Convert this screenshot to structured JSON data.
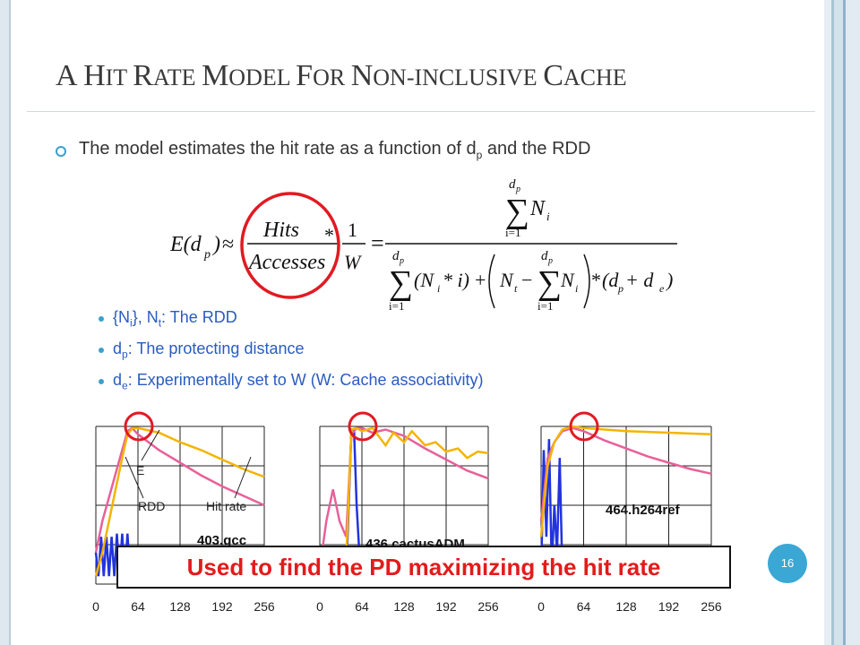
{
  "slide": {
    "title_parts": [
      {
        "t": "A",
        "big": true
      },
      {
        "t": " ",
        "big": false
      },
      {
        "t": "H",
        "big": true
      },
      {
        "t": "IT",
        "big": false
      },
      {
        "t": " ",
        "big": false
      },
      {
        "t": "R",
        "big": true
      },
      {
        "t": "ATE",
        "big": false
      },
      {
        "t": " ",
        "big": false
      },
      {
        "t": "M",
        "big": true
      },
      {
        "t": "ODEL",
        "big": false
      },
      {
        "t": " ",
        "big": false
      },
      {
        "t": "F",
        "big": true
      },
      {
        "t": "OR",
        "big": false
      },
      {
        "t": " ",
        "big": false
      },
      {
        "t": "N",
        "big": true
      },
      {
        "t": "ON-INCLUSIVE",
        "big": false
      },
      {
        "t": " ",
        "big": false
      },
      {
        "t": "C",
        "big": true
      },
      {
        "t": "ACHE",
        "big": false
      }
    ],
    "main_bullet": {
      "before": "The model estimates the hit rate as a function of d",
      "sub": "p",
      "after": " and the RDD"
    },
    "sub_bullets": [
      {
        "a": "{N",
        "s1": "i",
        "b": "}, N",
        "s2": "t",
        "c": ": The RDD"
      },
      {
        "a": "d",
        "s1": "p",
        "b": ": The protecting distance",
        "s2": "",
        "c": ""
      },
      {
        "a": "d",
        "s1": "e",
        "b": ": Experimentally set to W (W: Cache associativity)",
        "s2": "",
        "c": ""
      }
    ],
    "formula": {
      "lhs": "E(d",
      "lhs_sub": "p",
      "lhs_close": ")",
      "approx": "≈",
      "hits": "Hits",
      "accesses": "Accesses",
      "times": "*",
      "one": "1",
      "W": "W",
      "equals": "=",
      "dp": "d",
      "p": "p",
      "i_eq_1": "i=1",
      "Ni": "N",
      "i": "i",
      "Ni_times_i": "(N",
      "times_i": " * i)",
      "plus": "+",
      "Nt": "N",
      "t": "t",
      "minus": "−",
      "dp_plus_de": "(d",
      "e": "e",
      "plus_sign": " + d",
      "close": ")"
    },
    "callout": "Used to find the PD maximizing the hit rate",
    "page_number": "16",
    "colors": {
      "title": "#3a3a3a",
      "subtext": "#2a5bc0",
      "accent": "#3ba7d4",
      "callout_text": "#e31b1b",
      "circle": "#e11a22",
      "rdd": "#2233dd",
      "hitrate": "#e8609a",
      "estimate": "#f4b400"
    }
  },
  "chart_data": [
    {
      "type": "line",
      "label": "403.gcc",
      "xticks": [
        "0",
        "64",
        "128",
        "192",
        "256"
      ],
      "xlim": [
        0,
        256
      ],
      "ylim": [
        0,
        1
      ],
      "annotations": [
        "E",
        "RDD",
        "Hit rate"
      ],
      "series": [
        {
          "name": "RDD",
          "color": "#2233dd",
          "points": [
            [
              0,
              0.2
            ],
            [
              4,
              0.05
            ],
            [
              8,
              0.3
            ],
            [
              12,
              0.05
            ],
            [
              16,
              0.3
            ],
            [
              20,
              0.05
            ],
            [
              24,
              0.3
            ],
            [
              28,
              0.05
            ],
            [
              32,
              0.32
            ],
            [
              36,
              0.05
            ],
            [
              40,
              0.32
            ],
            [
              44,
              0.05
            ],
            [
              48,
              0.32
            ],
            [
              52,
              0.05
            ],
            [
              56,
              0.02
            ],
            [
              60,
              0.02
            ]
          ]
        },
        {
          "name": "Hit rate",
          "color": "#e8609a",
          "points": [
            [
              0,
              0.2
            ],
            [
              10,
              0.4
            ],
            [
              20,
              0.55
            ],
            [
              30,
              0.7
            ],
            [
              40,
              0.85
            ],
            [
              48,
              0.97
            ],
            [
              55,
              0.99
            ],
            [
              64,
              0.95
            ],
            [
              96,
              0.85
            ],
            [
              128,
              0.77
            ],
            [
              160,
              0.69
            ],
            [
              192,
              0.62
            ],
            [
              224,
              0.56
            ],
            [
              256,
              0.5
            ]
          ]
        },
        {
          "name": "E",
          "color": "#f4b400",
          "points": [
            [
              0,
              0.05
            ],
            [
              10,
              0.2
            ],
            [
              20,
              0.4
            ],
            [
              30,
              0.6
            ],
            [
              40,
              0.8
            ],
            [
              48,
              0.95
            ],
            [
              56,
              0.99
            ],
            [
              64,
              0.99
            ],
            [
              96,
              0.96
            ],
            [
              128,
              0.9
            ],
            [
              160,
              0.85
            ],
            [
              192,
              0.79
            ],
            [
              224,
              0.73
            ],
            [
              256,
              0.68
            ]
          ]
        }
      ]
    },
    {
      "type": "line",
      "label": "436.cactusADM",
      "xticks": [
        "0",
        "64",
        "128",
        "192",
        "256"
      ],
      "xlim": [
        0,
        256
      ],
      "ylim": [
        0,
        1
      ],
      "series": [
        {
          "name": "RDD",
          "color": "#2233dd",
          "points": [
            [
              0,
              0.05
            ],
            [
              10,
              0.05
            ],
            [
              20,
              0.05
            ],
            [
              30,
              0.05
            ],
            [
              40,
              0.05
            ],
            [
              48,
              0.98
            ],
            [
              52,
              0.98
            ],
            [
              56,
              0.5
            ],
            [
              60,
              0.2
            ],
            [
              64,
              0.05
            ]
          ]
        },
        {
          "name": "Hit rate",
          "color": "#e8609a",
          "points": [
            [
              0,
              0.1
            ],
            [
              10,
              0.4
            ],
            [
              20,
              0.6
            ],
            [
              30,
              0.4
            ],
            [
              40,
              0.3
            ],
            [
              48,
              0.95
            ],
            [
              56,
              0.99
            ],
            [
              64,
              0.99
            ],
            [
              80,
              0.96
            ],
            [
              100,
              0.98
            ],
            [
              128,
              0.94
            ],
            [
              160,
              0.86
            ],
            [
              192,
              0.79
            ],
            [
              224,
              0.72
            ],
            [
              256,
              0.67
            ]
          ]
        },
        {
          "name": "E",
          "color": "#f4b400",
          "points": [
            [
              0,
              0.05
            ],
            [
              40,
              0.15
            ],
            [
              48,
              0.98
            ],
            [
              56,
              0.99
            ],
            [
              64,
              0.97
            ],
            [
              80,
              0.99
            ],
            [
              100,
              0.88
            ],
            [
              112,
              0.96
            ],
            [
              128,
              0.9
            ],
            [
              140,
              0.97
            ],
            [
              160,
              0.88
            ],
            [
              176,
              0.9
            ],
            [
              192,
              0.84
            ],
            [
              210,
              0.86
            ],
            [
              224,
              0.8
            ],
            [
              240,
              0.84
            ],
            [
              256,
              0.83
            ]
          ]
        }
      ]
    },
    {
      "type": "line",
      "label": "464.h264ref",
      "xticks": [
        "0",
        "64",
        "128",
        "192",
        "256"
      ],
      "xlim": [
        0,
        256
      ],
      "ylim": [
        0,
        1
      ],
      "series": [
        {
          "name": "RDD",
          "color": "#2233dd",
          "points": [
            [
              0,
              0.05
            ],
            [
              4,
              0.85
            ],
            [
              8,
              0.3
            ],
            [
              12,
              0.92
            ],
            [
              16,
              0.1
            ],
            [
              20,
              0.5
            ],
            [
              24,
              0.2
            ],
            [
              28,
              0.8
            ],
            [
              32,
              0.05
            ],
            [
              40,
              0.05
            ],
            [
              64,
              0.05
            ]
          ]
        },
        {
          "name": "Hit rate",
          "color": "#e8609a",
          "points": [
            [
              0,
              0.4
            ],
            [
              10,
              0.8
            ],
            [
              20,
              0.9
            ],
            [
              32,
              0.97
            ],
            [
              48,
              0.99
            ],
            [
              64,
              0.97
            ],
            [
              96,
              0.91
            ],
            [
              128,
              0.86
            ],
            [
              160,
              0.81
            ],
            [
              192,
              0.77
            ],
            [
              224,
              0.73
            ],
            [
              256,
              0.7
            ]
          ]
        },
        {
          "name": "E",
          "color": "#f4b400",
          "points": [
            [
              0,
              0.3
            ],
            [
              10,
              0.75
            ],
            [
              20,
              0.9
            ],
            [
              32,
              0.98
            ],
            [
              48,
              1.0
            ],
            [
              64,
              0.99
            ],
            [
              128,
              0.97
            ],
            [
              192,
              0.96
            ],
            [
              256,
              0.95
            ]
          ]
        }
      ]
    }
  ]
}
